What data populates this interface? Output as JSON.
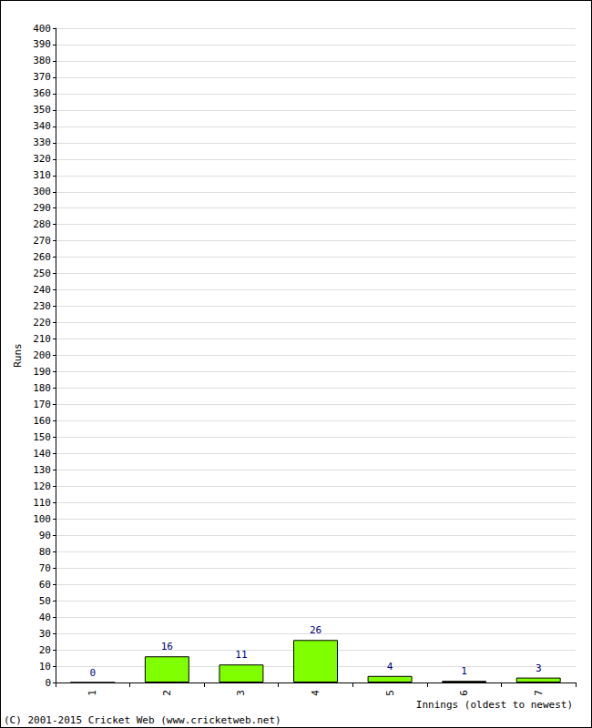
{
  "chart_data": {
    "type": "bar",
    "categories": [
      "1",
      "2",
      "3",
      "4",
      "5",
      "6",
      "7"
    ],
    "values": [
      0,
      16,
      11,
      26,
      4,
      1,
      3
    ],
    "color": "#80ff00",
    "x_label": "Innings (oldest to newest)",
    "y_label": "Runs",
    "annotations": [
      "(C) 2001-2015 Cricket Web (www.cricketweb.net)"
    ],
    "ylim": [
      0,
      400
    ],
    "yticks": [
      0,
      10,
      20,
      30,
      40,
      50,
      60,
      70,
      80,
      90,
      100,
      110,
      120,
      130,
      140,
      150,
      160,
      170,
      180,
      190,
      200,
      210,
      220,
      230,
      240,
      250,
      260,
      270,
      280,
      290,
      300,
      310,
      320,
      330,
      340,
      350,
      360,
      370,
      380,
      390,
      400
    ],
    "grid": true,
    "data_labels": true
  }
}
